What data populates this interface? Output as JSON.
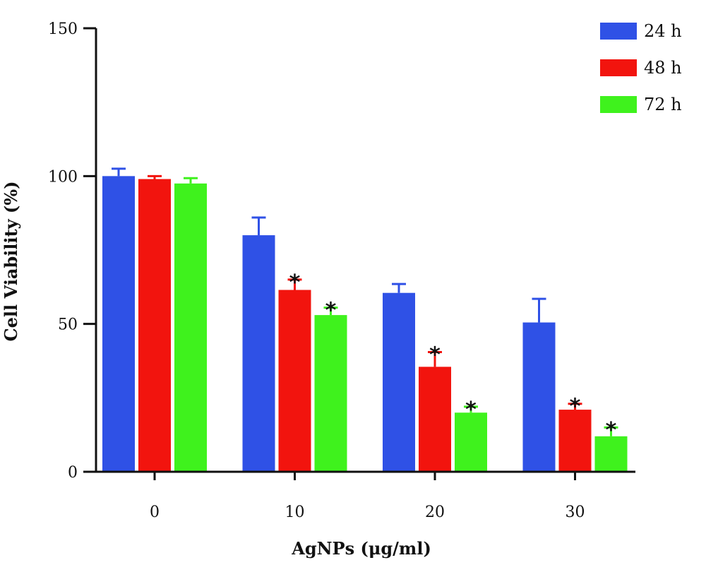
{
  "chart_data": {
    "type": "bar",
    "categories": [
      "0",
      "10",
      "20",
      "30"
    ],
    "series": [
      {
        "name": "24 h",
        "color": "#2f51e6",
        "values": [
          100,
          80,
          60.5,
          50.5
        ],
        "errors": [
          2.5,
          6,
          3,
          8
        ],
        "sig": [
          "",
          "",
          "",
          ""
        ]
      },
      {
        "name": "48 h",
        "color": "#f2140e",
        "values": [
          99,
          61.5,
          35.5,
          21
        ],
        "errors": [
          1,
          3.5,
          5,
          2
        ],
        "sig": [
          "",
          "*",
          "*",
          "*"
        ]
      },
      {
        "name": "72 h",
        "color": "#3ff21d",
        "values": [
          97.5,
          53,
          20,
          12
        ],
        "errors": [
          1.8,
          2.5,
          2,
          3
        ],
        "sig": [
          "",
          "*",
          "*",
          "*"
        ]
      }
    ],
    "yticks": [
      0,
      50,
      100,
      150
    ],
    "ylim": [
      0,
      150
    ],
    "xlabel": "AgNPs (μg/ml)",
    "ylabel": "Cell Viability (%)",
    "legend_position": "top-right",
    "grid": false
  }
}
